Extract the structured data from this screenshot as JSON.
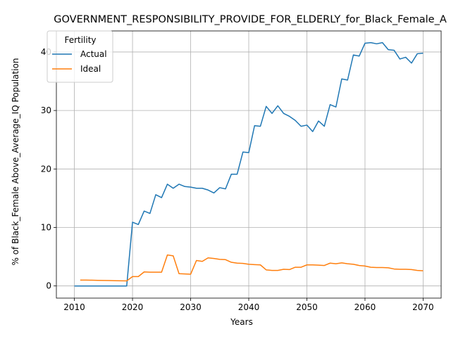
{
  "chart_data": {
    "type": "line",
    "title": "GOVERNMENT_RESPONSIBILITY_PROVIDE_FOR_ELDERLY_for_Black_Female_A",
    "xlabel": "Years",
    "ylabel": "% of Black_Female Above_Average_IQ Population",
    "xlim": [
      2006.9,
      2073.1
    ],
    "ylim": [
      -2.08,
      43.6
    ],
    "xticks": [
      2010,
      2020,
      2030,
      2040,
      2050,
      2060,
      2070
    ],
    "yticks": [
      0,
      10,
      20,
      30,
      40
    ],
    "grid": true,
    "legend": {
      "title": "Fertility",
      "placement": "top-left"
    },
    "series": [
      {
        "name": "Actual",
        "color": "#1f77b4",
        "x": [
          2010,
          2011,
          2012,
          2013,
          2014,
          2015,
          2016,
          2017,
          2018,
          2019,
          2020,
          2021,
          2022,
          2023,
          2024,
          2025,
          2026,
          2027,
          2028,
          2029,
          2030,
          2031,
          2032,
          2033,
          2034,
          2035,
          2036,
          2037,
          2038,
          2039,
          2040,
          2041,
          2042,
          2043,
          2044,
          2045,
          2046,
          2047,
          2048,
          2049,
          2050,
          2051,
          2052,
          2053,
          2054,
          2055,
          2056,
          2057,
          2058,
          2059,
          2060,
          2061,
          2062,
          2063,
          2064,
          2065,
          2066,
          2067,
          2068,
          2069,
          2070
        ],
        "y": [
          0,
          0,
          0,
          0,
          0,
          0,
          0,
          0,
          0,
          0,
          10.9,
          10.5,
          12.8,
          12.4,
          15.6,
          15.1,
          17.4,
          16.7,
          17.4,
          17.0,
          16.9,
          16.7,
          16.7,
          16.4,
          15.9,
          16.8,
          16.6,
          19.1,
          19.1,
          22.9,
          22.8,
          27.4,
          27.3,
          30.7,
          29.5,
          30.8,
          29.5,
          29.0,
          28.3,
          27.3,
          27.5,
          26.4,
          28.2,
          27.3,
          31.0,
          30.6,
          35.4,
          35.2,
          39.5,
          39.3,
          41.5,
          41.6,
          41.4,
          41.6,
          40.4,
          40.3,
          38.8,
          39.1,
          38.1,
          39.7,
          39.8
        ]
      },
      {
        "name": "Ideal",
        "color": "#ff7f0e",
        "x": [
          2011,
          2012,
          2013,
          2014,
          2015,
          2016,
          2017,
          2018,
          2019,
          2020,
          2021,
          2022,
          2023,
          2024,
          2025,
          2026,
          2027,
          2028,
          2029,
          2030,
          2031,
          2032,
          2033,
          2034,
          2035,
          2036,
          2037,
          2038,
          2039,
          2040,
          2041,
          2042,
          2043,
          2044,
          2045,
          2046,
          2047,
          2048,
          2049,
          2050,
          2051,
          2052,
          2053,
          2054,
          2055,
          2056,
          2057,
          2058,
          2059,
          2060,
          2061,
          2062,
          2063,
          2064,
          2065,
          2066,
          2067,
          2068,
          2069,
          2070
        ],
        "y": [
          1.0,
          1.0,
          0.98,
          0.96,
          0.94,
          0.92,
          0.9,
          0.88,
          0.86,
          1.6,
          1.6,
          2.4,
          2.35,
          2.35,
          2.35,
          5.3,
          5.15,
          2.1,
          2.05,
          2.0,
          4.35,
          4.2,
          4.8,
          4.7,
          4.55,
          4.5,
          4.05,
          3.9,
          3.85,
          3.7,
          3.65,
          3.6,
          2.75,
          2.65,
          2.65,
          2.85,
          2.8,
          3.2,
          3.2,
          3.6,
          3.6,
          3.55,
          3.5,
          3.9,
          3.8,
          3.95,
          3.8,
          3.7,
          3.5,
          3.4,
          3.2,
          3.15,
          3.15,
          3.1,
          2.9,
          2.85,
          2.85,
          2.8,
          2.65,
          2.6
        ]
      }
    ]
  }
}
